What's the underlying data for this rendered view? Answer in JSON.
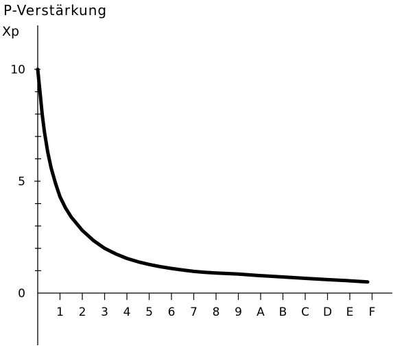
{
  "chart_data": {
    "type": "line",
    "title": "P-Verstärkung",
    "xlabel": "",
    "ylabel": "Xp",
    "x_tick_labels": [
      "1",
      "2",
      "3",
      "4",
      "5",
      "6",
      "7",
      "8",
      "9",
      "A",
      "B",
      "C",
      "D",
      "E",
      "F"
    ],
    "y_tick_labels": [
      {
        "value": 0,
        "label": "0"
      },
      {
        "value": 5,
        "label": "5"
      },
      {
        "value": 10,
        "label": "10"
      }
    ],
    "xlim": [
      0,
      15.3
    ],
    "ylim": [
      0,
      10
    ],
    "y_minor_step": 1,
    "grid": false,
    "series": [
      {
        "x": [
          0,
          0.1,
          0.2,
          0.3,
          0.45,
          0.6,
          0.8,
          1.0,
          1.25,
          1.5,
          1.75,
          2.0,
          2.5,
          3.0,
          3.5,
          4.0,
          4.5,
          5.0,
          5.5,
          6.0,
          6.5,
          7.0,
          7.5,
          8.0,
          9.0,
          10.0,
          11.0,
          12.0,
          13.0,
          14.0,
          14.8
        ],
        "y": [
          10.0,
          9.0,
          8.0,
          7.2,
          6.3,
          5.6,
          4.9,
          4.3,
          3.8,
          3.4,
          3.1,
          2.8,
          2.35,
          2.0,
          1.75,
          1.55,
          1.4,
          1.28,
          1.18,
          1.1,
          1.03,
          0.97,
          0.93,
          0.9,
          0.85,
          0.78,
          0.72,
          0.66,
          0.6,
          0.55,
          0.5
        ]
      }
    ]
  }
}
